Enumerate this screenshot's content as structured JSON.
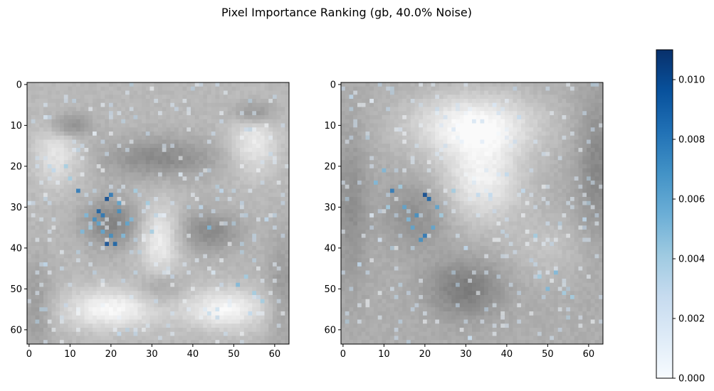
{
  "title": "Pixel Importance Ranking (gb, 40.0% Noise)",
  "chart_data": [
    {
      "type": "heatmap",
      "background": "grayscale-image",
      "overlay_colormap": "Blues",
      "xlim": [
        0,
        63
      ],
      "ylim": [
        63,
        0
      ],
      "x_ticks": [
        0,
        10,
        20,
        30,
        40,
        50,
        60
      ],
      "y_ticks": [
        0,
        10,
        20,
        30,
        40,
        50,
        60
      ],
      "hot_points": [
        [
          17,
          31,
          0.009
        ],
        [
          18,
          32,
          0.008
        ],
        [
          19,
          28,
          0.01
        ],
        [
          20,
          27,
          0.008
        ],
        [
          16,
          33,
          0.007
        ],
        [
          22,
          31,
          0.007
        ],
        [
          21,
          39,
          0.009
        ],
        [
          19,
          39,
          0.01
        ],
        [
          17,
          34,
          0.006
        ],
        [
          24,
          34,
          0.006
        ],
        [
          12,
          26,
          0.008
        ],
        [
          22,
          29,
          0.006
        ],
        [
          25,
          33,
          0.005
        ],
        [
          14,
          32,
          0.005
        ],
        [
          15,
          35,
          0.004
        ],
        [
          23,
          37,
          0.005
        ],
        [
          20,
          37,
          0.007
        ],
        [
          18,
          36,
          0.006
        ],
        [
          13,
          36,
          0.005
        ],
        [
          26,
          26,
          0.004
        ],
        [
          29,
          29,
          0.004
        ],
        [
          44,
          35,
          0.005
        ],
        [
          51,
          49,
          0.005
        ],
        [
          55,
          51,
          0.004
        ],
        [
          53,
          47,
          0.004
        ],
        [
          57,
          53,
          0.004
        ],
        [
          10,
          23,
          0.004
        ],
        [
          30,
          36,
          0.004
        ],
        [
          54,
          56,
          0.003
        ],
        [
          58,
          33,
          0.003
        ],
        [
          47,
          26,
          0.003
        ],
        [
          4,
          44,
          0.003
        ],
        [
          9,
          20,
          0.004
        ],
        [
          6,
          21,
          0.003
        ],
        [
          42,
          30,
          0.003
        ]
      ]
    },
    {
      "type": "heatmap",
      "background": "grayscale-image",
      "overlay_colormap": "Blues",
      "xlim": [
        0,
        63
      ],
      "ylim": [
        63,
        0
      ],
      "x_ticks": [
        0,
        10,
        20,
        30,
        40,
        50,
        60
      ],
      "y_ticks": [
        0,
        10,
        20,
        30,
        40,
        50,
        60
      ],
      "hot_points": [
        [
          20,
          27,
          0.01
        ],
        [
          21,
          28,
          0.009
        ],
        [
          18,
          32,
          0.007
        ],
        [
          17,
          35,
          0.006
        ],
        [
          22,
          35,
          0.006
        ],
        [
          20,
          37,
          0.008
        ],
        [
          19,
          38,
          0.007
        ],
        [
          12,
          26,
          0.008
        ],
        [
          15,
          30,
          0.006
        ],
        [
          23,
          30,
          0.006
        ],
        [
          16,
          33,
          0.005
        ],
        [
          10,
          21,
          0.005
        ],
        [
          8,
          24,
          0.005
        ],
        [
          14,
          25,
          0.004
        ],
        [
          11,
          30,
          0.004
        ],
        [
          24,
          32,
          0.004
        ],
        [
          50,
          50,
          0.005
        ],
        [
          52,
          46,
          0.005
        ],
        [
          54,
          51,
          0.004
        ],
        [
          48,
          47,
          0.004
        ],
        [
          56,
          52,
          0.004
        ],
        [
          47,
          37,
          0.004
        ],
        [
          59,
          33,
          0.003
        ],
        [
          40,
          22,
          0.003
        ],
        [
          36,
          27,
          0.003
        ],
        [
          30,
          40,
          0.003
        ],
        [
          27,
          26,
          0.004
        ],
        [
          2,
          3,
          0.003
        ],
        [
          4,
          44,
          0.003
        ],
        [
          44,
          26,
          0.003
        ],
        [
          33,
          27,
          0.003
        ]
      ]
    }
  ],
  "colorbar": {
    "colormap": "Blues",
    "range": [
      0,
      0.011
    ],
    "ticks": [
      "0.000",
      "0.002",
      "0.004",
      "0.006",
      "0.008",
      "0.010"
    ]
  }
}
